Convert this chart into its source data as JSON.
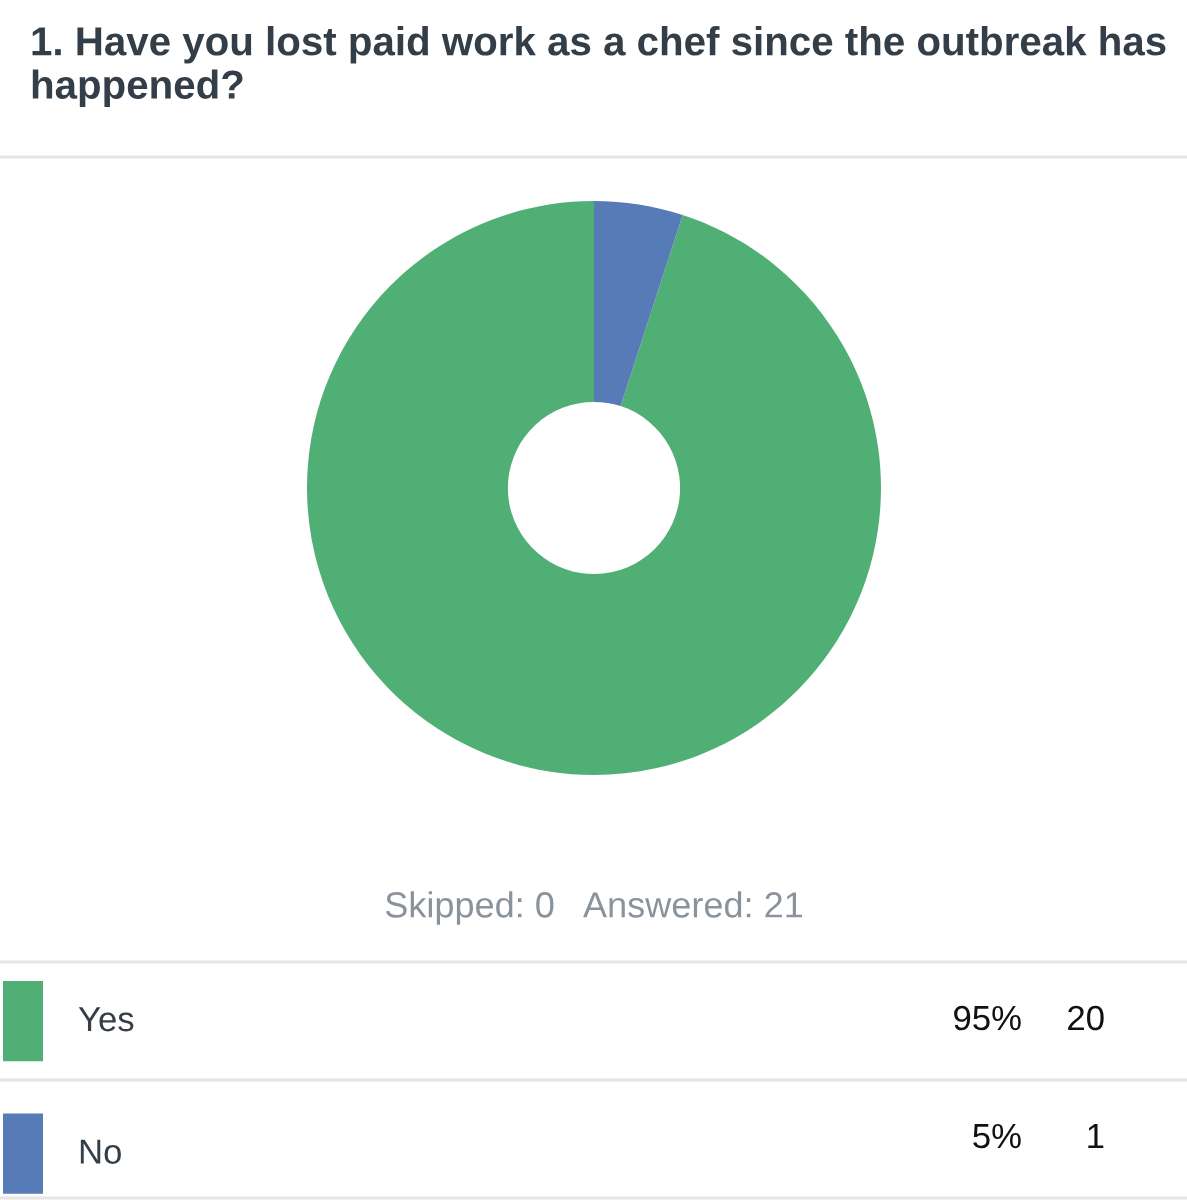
{
  "chart_data": {
    "type": "donut",
    "title": "1. Have you lost paid work as a chef since the outbreak has happened?",
    "categories": [
      "Yes",
      "No"
    ],
    "values": [
      95,
      5
    ],
    "colors": [
      "#50af74",
      "#577bb6"
    ],
    "value_labels": [
      "95%",
      "5%"
    ],
    "annotations": [
      "Skipped: 0",
      "Answered: 21",
      "20",
      "1"
    ],
    "legend": "bottom"
  }
}
